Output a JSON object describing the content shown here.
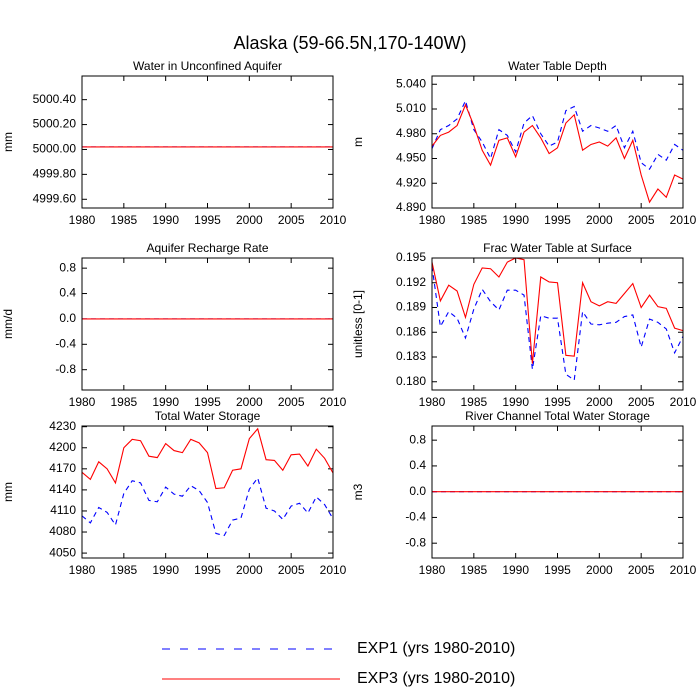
{
  "title": "Alaska (59-66.5N,170-140W)",
  "legend": [
    {
      "name": "EXP1 (yrs 1980-2010)",
      "color": "#0000ff",
      "dashed": true
    },
    {
      "name": "EXP3 (yrs 1980-2010)",
      "color": "#ff0000",
      "dashed": false
    }
  ],
  "chart_data": [
    {
      "type": "line",
      "title": "Water in Unconfined Aquifer",
      "y_label": "mm",
      "x": [
        1980,
        1981,
        1982,
        1983,
        1984,
        1985,
        1986,
        1987,
        1988,
        1989,
        1990,
        1991,
        1992,
        1993,
        1994,
        1995,
        1996,
        1997,
        1998,
        1999,
        2000,
        2001,
        2002,
        2003,
        2004,
        2005,
        2006,
        2007,
        2008,
        2009,
        2010
      ],
      "xlim": [
        1980,
        2010
      ],
      "xticks": [
        1980,
        1985,
        1990,
        1995,
        2000,
        2005,
        2010
      ],
      "ylim": [
        4999.53,
        5000.59
      ],
      "yticks": [
        {
          "value": 4999.6,
          "label": "4999.60"
        },
        {
          "value": 4999.8,
          "label": "4999.80"
        },
        {
          "value": 5000,
          "label": "5000.00"
        },
        {
          "value": 5000.2,
          "label": "5000.20"
        },
        {
          "value": 5000.4,
          "label": "5000.40"
        }
      ],
      "series": [
        {
          "values": [
            5000.02,
            5000.02,
            5000.02,
            5000.02,
            5000.02,
            5000.02,
            5000.02,
            5000.02,
            5000.02,
            5000.02,
            5000.02,
            5000.02,
            5000.02,
            5000.02,
            5000.02,
            5000.02,
            5000.02,
            5000.02,
            5000.02,
            5000.02,
            5000.02,
            5000.02,
            5000.02,
            5000.02,
            5000.02,
            5000.02,
            5000.02,
            5000.02,
            5000.02,
            5000.02,
            5000.02
          ]
        },
        {
          "values": [
            5000.02,
            5000.02,
            5000.02,
            5000.02,
            5000.02,
            5000.02,
            5000.02,
            5000.02,
            5000.02,
            5000.02,
            5000.02,
            5000.02,
            5000.02,
            5000.02,
            5000.02,
            5000.02,
            5000.02,
            5000.02,
            5000.02,
            5000.02,
            5000.02,
            5000.02,
            5000.02,
            5000.02,
            5000.02,
            5000.02,
            5000.02,
            5000.02,
            5000.02,
            5000.02,
            5000.02
          ]
        }
      ]
    },
    {
      "type": "line",
      "title": "Water Table Depth",
      "y_label": "m",
      "x": [
        1980,
        1981,
        1982,
        1983,
        1984,
        1985,
        1986,
        1987,
        1988,
        1989,
        1990,
        1991,
        1992,
        1993,
        1994,
        1995,
        1996,
        1997,
        1998,
        1999,
        2000,
        2001,
        2002,
        2003,
        2004,
        2005,
        2006,
        2007,
        2008,
        2009,
        2010
      ],
      "xlim": [
        1980,
        2010
      ],
      "xticks": [
        1980,
        1985,
        1990,
        1995,
        2000,
        2005,
        2010
      ],
      "ylim": [
        4.89,
        5.05
      ],
      "yticks": [
        {
          "value": 4.89,
          "label": "4.890"
        },
        {
          "value": 4.92,
          "label": "4.920"
        },
        {
          "value": 4.95,
          "label": "4.950"
        },
        {
          "value": 4.98,
          "label": "4.980"
        },
        {
          "value": 5.01,
          "label": "5.010"
        },
        {
          "value": 5.04,
          "label": "5.040"
        }
      ],
      "series": [
        {
          "values": [
            4.962,
            4.985,
            4.99,
            4.998,
            5.02,
            4.985,
            4.97,
            4.95,
            4.985,
            4.978,
            4.958,
            4.993,
            5.002,
            4.98,
            4.965,
            4.97,
            5.008,
            5.013,
            4.983,
            4.99,
            4.987,
            4.983,
            4.99,
            4.963,
            4.983,
            4.945,
            4.937,
            4.955,
            4.948,
            4.967,
            4.96
          ]
        },
        {
          "values": [
            4.965,
            4.978,
            4.982,
            4.99,
            5.015,
            4.99,
            4.96,
            4.942,
            4.972,
            4.975,
            4.952,
            4.982,
            4.99,
            4.975,
            4.956,
            4.963,
            4.993,
            5.003,
            4.96,
            4.967,
            4.97,
            4.965,
            4.975,
            4.95,
            4.972,
            4.93,
            4.897,
            4.913,
            4.903,
            4.93,
            4.925
          ]
        }
      ]
    },
    {
      "type": "line",
      "title": "Aquifer Recharge Rate",
      "y_label": "mm/d",
      "x": [
        1980,
        1981,
        1982,
        1983,
        1984,
        1985,
        1986,
        1987,
        1988,
        1989,
        1990,
        1991,
        1992,
        1993,
        1994,
        1995,
        1996,
        1997,
        1998,
        1999,
        2000,
        2001,
        2002,
        2003,
        2004,
        2005,
        2006,
        2007,
        2008,
        2009,
        2010
      ],
      "xlim": [
        1980,
        2010
      ],
      "xticks": [
        1980,
        1985,
        1990,
        1995,
        2000,
        2005,
        2010
      ],
      "ylim": [
        -1.12,
        0.96
      ],
      "yticks": [
        -0.8,
        -0.4,
        {
          "value": 0,
          "label": "0.0"
        },
        0.4,
        0.8
      ],
      "series": [
        {
          "values": [
            0,
            0,
            0,
            0,
            0,
            0,
            0,
            0,
            0,
            0,
            0,
            0,
            0,
            0,
            0,
            0,
            0,
            0,
            0,
            0,
            0,
            0,
            0,
            0,
            0,
            0,
            0,
            0,
            0,
            0,
            0
          ]
        },
        {
          "values": [
            0,
            0,
            0,
            0,
            0,
            0,
            0,
            0,
            0,
            0,
            0,
            0,
            0,
            0,
            0,
            0,
            0,
            0,
            0,
            0,
            0,
            0,
            0,
            0,
            0,
            0,
            0,
            0,
            0,
            0,
            0
          ]
        }
      ]
    },
    {
      "type": "line",
      "title": "Frac Water Table at Surface",
      "y_label": "unitless [0-1]",
      "x": [
        1980,
        1981,
        1982,
        1983,
        1984,
        1985,
        1986,
        1987,
        1988,
        1989,
        1990,
        1991,
        1992,
        1993,
        1994,
        1995,
        1996,
        1997,
        1998,
        1999,
        2000,
        2001,
        2002,
        2003,
        2004,
        2005,
        2006,
        2007,
        2008,
        2009,
        2010
      ],
      "xlim": [
        1980,
        2010
      ],
      "xticks": [
        1980,
        1985,
        1990,
        1995,
        2000,
        2005,
        2010
      ],
      "ylim": [
        0.179,
        0.195
      ],
      "yticks": [
        {
          "value": 0.18,
          "label": "0.180"
        },
        0.183,
        0.186,
        0.189,
        0.192,
        0.195
      ],
      "series": [
        {
          "values": [
            0.194,
            0.1867,
            0.1885,
            0.1877,
            0.1853,
            0.1888,
            0.1912,
            0.1897,
            0.1887,
            0.1911,
            0.1911,
            0.1905,
            0.1815,
            0.188,
            0.1877,
            0.1877,
            0.1809,
            0.1802,
            0.1885,
            0.187,
            0.1869,
            0.1871,
            0.1872,
            0.1879,
            0.1881,
            0.1842,
            0.1876,
            0.1872,
            0.1864,
            0.1835,
            0.1855
          ]
        },
        {
          "values": [
            0.1945,
            0.1898,
            0.1917,
            0.191,
            0.1878,
            0.1918,
            0.1938,
            0.1937,
            0.1927,
            0.1945,
            0.195,
            0.1948,
            0.1822,
            0.1927,
            0.1921,
            0.192,
            0.1832,
            0.1831,
            0.192,
            0.1897,
            0.1892,
            0.1897,
            0.1895,
            0.1907,
            0.1919,
            0.189,
            0.1905,
            0.1891,
            0.1889,
            0.1865,
            0.1862
          ]
        }
      ]
    },
    {
      "type": "line",
      "title": "Total Water Storage",
      "y_label": "mm",
      "x": [
        1980,
        1981,
        1982,
        1983,
        1984,
        1985,
        1986,
        1987,
        1988,
        1989,
        1990,
        1991,
        1992,
        1993,
        1994,
        1995,
        1996,
        1997,
        1998,
        1999,
        2000,
        2001,
        2002,
        2003,
        2004,
        2005,
        2006,
        2007,
        2008,
        2009,
        2010
      ],
      "xlim": [
        1980,
        2010
      ],
      "xticks": [
        1980,
        1985,
        1990,
        1995,
        2000,
        2005,
        2010
      ],
      "ylim": [
        4043,
        4231
      ],
      "yticks": [
        4050,
        4080,
        4110,
        4140,
        4170,
        4200,
        4230
      ],
      "series": [
        {
          "values": [
            4103,
            4093,
            4115,
            4108,
            4090,
            4135,
            4153,
            4150,
            4125,
            4123,
            4144,
            4134,
            4131,
            4146,
            4139,
            4122,
            4078,
            4075,
            4097,
            4100,
            4141,
            4157,
            4114,
            4110,
            4098,
            4117,
            4121,
            4107,
            4130,
            4119,
            4099
          ]
        },
        {
          "values": [
            4165,
            4155,
            4180,
            4170,
            4150,
            4200,
            4212,
            4210,
            4188,
            4186,
            4206,
            4196,
            4193,
            4212,
            4207,
            4193,
            4142,
            4143,
            4168,
            4170,
            4213,
            4227,
            4183,
            4182,
            4168,
            4190,
            4191,
            4174,
            4198,
            4185,
            4164
          ]
        }
      ]
    },
    {
      "type": "line",
      "title": "River Channel Total Water Storage",
      "y_label": "m3",
      "x": [
        1980,
        1981,
        1982,
        1983,
        1984,
        1985,
        1986,
        1987,
        1988,
        1989,
        1990,
        1991,
        1992,
        1993,
        1994,
        1995,
        1996,
        1997,
        1998,
        1999,
        2000,
        2001,
        2002,
        2003,
        2004,
        2005,
        2006,
        2007,
        2008,
        2009,
        2010
      ],
      "xlim": [
        1980,
        2010
      ],
      "xticks": [
        1980,
        1985,
        1990,
        1995,
        2000,
        2005,
        2010
      ],
      "ylim": [
        -1.03,
        1.02
      ],
      "yticks": [
        -0.8,
        -0.4,
        {
          "value": 0,
          "label": "0.0"
        },
        0.4,
        0.8
      ],
      "series": [
        {
          "values": [
            0,
            0,
            0,
            0,
            0,
            0,
            0,
            0,
            0,
            0,
            0,
            0,
            0,
            0,
            0,
            0,
            0,
            0,
            0,
            0,
            0,
            0,
            0,
            0,
            0,
            0,
            0,
            0,
            0,
            0,
            0
          ]
        },
        {
          "values": [
            0,
            0,
            0,
            0,
            0,
            0,
            0,
            0,
            0,
            0,
            0,
            0,
            0,
            0,
            0,
            0,
            0,
            0,
            0,
            0,
            0,
            0,
            0,
            0,
            0,
            0,
            0,
            0,
            0,
            0,
            0
          ]
        }
      ]
    }
  ]
}
